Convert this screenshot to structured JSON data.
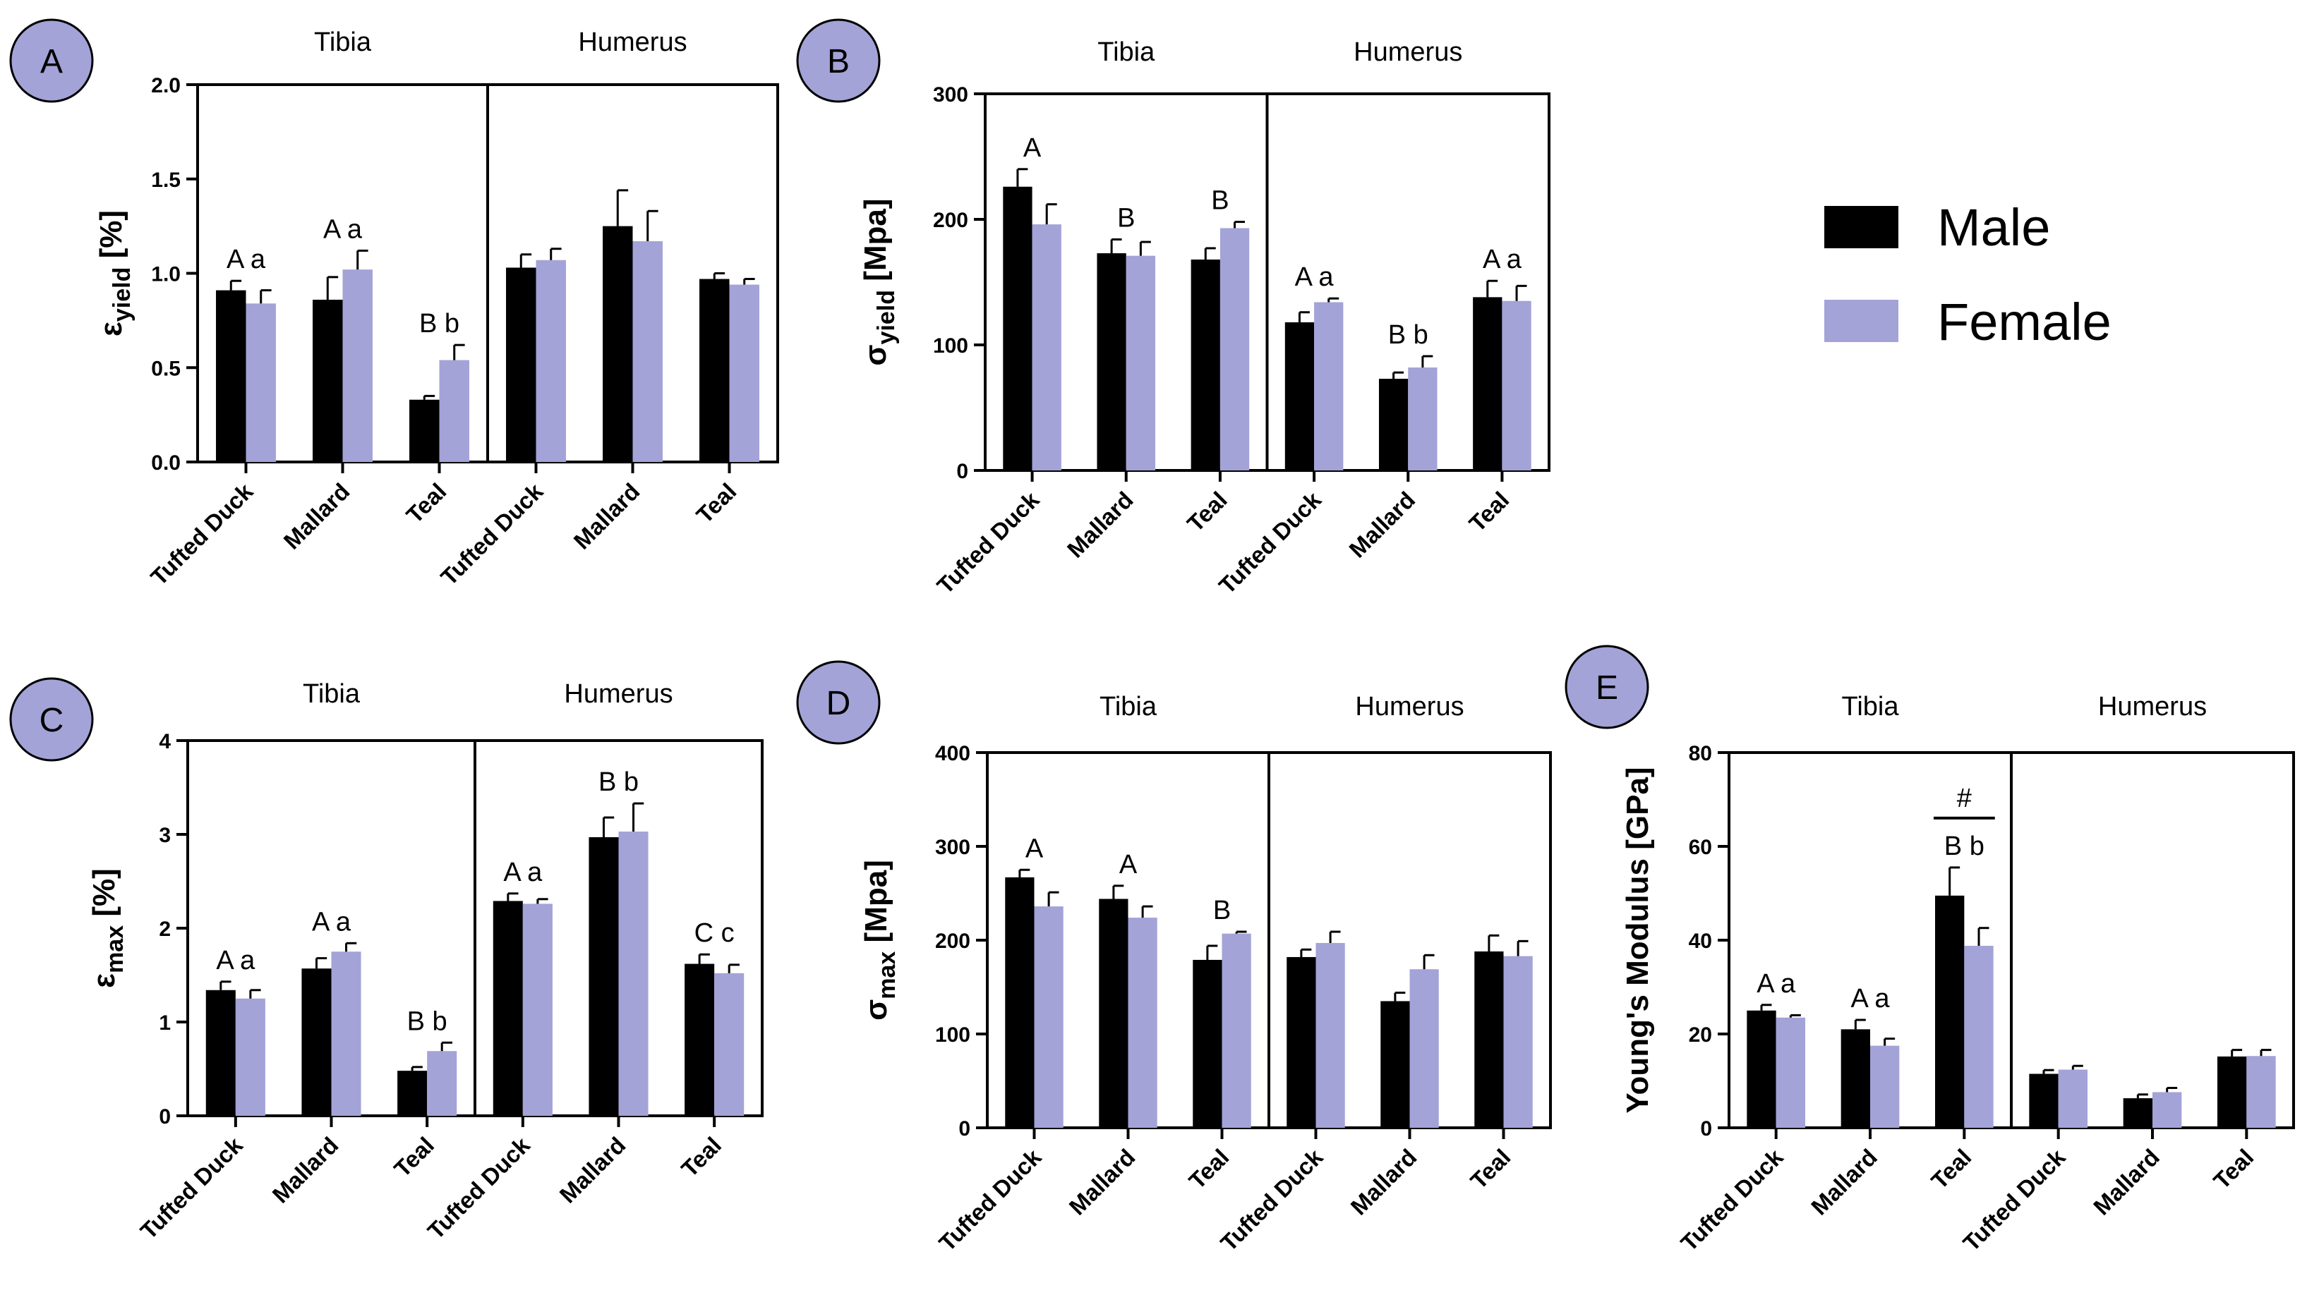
{
  "colors": {
    "male": "#000000",
    "female": "#a3a3d8",
    "panel_badge": "#a3a3d8"
  },
  "legend": {
    "male": "Male",
    "female": "Female"
  },
  "chart_data": [
    {
      "panel": "A",
      "type": "bar",
      "groups": [
        "Tibia",
        "Humerus"
      ],
      "categories": [
        "Tufted Duck",
        "Mallard",
        "Teal",
        "Tufted Duck",
        "Mallard",
        "Teal"
      ],
      "ylabel_main": "ε",
      "ylabel_sub": "yield",
      "ylabel_unit": " [%]",
      "ylim": [
        0,
        2.0
      ],
      "yticks": [
        "0.0",
        "0.5",
        "1.0",
        "1.5",
        "2.0"
      ],
      "series": [
        {
          "name": "Male",
          "values": [
            0.91,
            0.86,
            0.33,
            1.03,
            1.25,
            0.97
          ],
          "errors": [
            0.05,
            0.12,
            0.02,
            0.07,
            0.19,
            0.03
          ]
        },
        {
          "name": "Female",
          "values": [
            0.84,
            1.02,
            0.54,
            1.07,
            1.17,
            0.94
          ],
          "errors": [
            0.07,
            0.1,
            0.08,
            0.06,
            0.16,
            0.03
          ]
        }
      ],
      "annotations": [
        "A a",
        "A a",
        "B b",
        "",
        "",
        ""
      ]
    },
    {
      "panel": "B",
      "type": "bar",
      "groups": [
        "Tibia",
        "Humerus"
      ],
      "categories": [
        "Tufted Duck",
        "Mallard",
        "Teal",
        "Tufted Duck",
        "Mallard",
        "Teal"
      ],
      "ylabel_main": "σ",
      "ylabel_sub": "yield",
      "ylabel_unit": " [Mpa]",
      "ylim": [
        0,
        300
      ],
      "yticks": [
        "0",
        "100",
        "200",
        "300"
      ],
      "series": [
        {
          "name": "Male",
          "values": [
            226,
            173,
            168,
            118,
            73,
            138
          ],
          "errors": [
            14,
            11,
            9,
            8,
            5,
            13
          ]
        },
        {
          "name": "Female",
          "values": [
            196,
            171,
            193,
            134,
            82,
            135
          ],
          "errors": [
            16,
            11,
            5,
            3,
            9,
            12
          ]
        }
      ],
      "annotations": [
        "A",
        "B",
        "B",
        "A a",
        "B b",
        "A a"
      ]
    },
    {
      "panel": "C",
      "type": "bar",
      "groups": [
        "Tibia",
        "Humerus"
      ],
      "categories": [
        "Tufted Duck",
        "Mallard",
        "Teal",
        "Tufted Duck",
        "Mallard",
        "Teal"
      ],
      "ylabel_main": "ε",
      "ylabel_sub": "max",
      "ylabel_unit": " [%]",
      "ylim": [
        0,
        4
      ],
      "yticks": [
        "0",
        "1",
        "2",
        "3",
        "4"
      ],
      "series": [
        {
          "name": "Male",
          "values": [
            1.34,
            1.57,
            0.48,
            2.29,
            2.97,
            1.62
          ],
          "errors": [
            0.09,
            0.11,
            0.04,
            0.08,
            0.21,
            0.1
          ]
        },
        {
          "name": "Female",
          "values": [
            1.25,
            1.75,
            0.69,
            2.26,
            3.03,
            1.52
          ],
          "errors": [
            0.09,
            0.09,
            0.09,
            0.05,
            0.3,
            0.09
          ]
        }
      ],
      "annotations": [
        "A a",
        "A a",
        "B b",
        "A a",
        "B b",
        "C c"
      ]
    },
    {
      "panel": "D",
      "type": "bar",
      "groups": [
        "Tibia",
        "Humerus"
      ],
      "categories": [
        "Tufted Duck",
        "Mallard",
        "Teal",
        "Tufted Duck",
        "Mallard",
        "Teal"
      ],
      "ylabel_main": "σ",
      "ylabel_sub": "max",
      "ylabel_unit": " [Mpa]",
      "ylim": [
        0,
        400
      ],
      "yticks": [
        "0",
        "100",
        "200",
        "300",
        "400"
      ],
      "series": [
        {
          "name": "Male",
          "values": [
            267,
            244,
            179,
            182,
            135,
            188
          ],
          "errors": [
            8,
            14,
            15,
            8,
            9,
            17
          ]
        },
        {
          "name": "Female",
          "values": [
            236,
            224,
            207,
            197,
            169,
            183
          ],
          "errors": [
            15,
            12,
            2,
            12,
            15,
            16
          ]
        }
      ],
      "annotations": [
        "A",
        "A",
        "B",
        "",
        "",
        ""
      ]
    },
    {
      "panel": "E",
      "type": "bar",
      "groups": [
        "Tibia",
        "Humerus"
      ],
      "categories": [
        "Tufted Duck",
        "Mallard",
        "Teal",
        "Tufted Duck",
        "Mallard",
        "Teal"
      ],
      "ylabel_main": "Young's Modulus [GPa]",
      "ylabel_sub": "",
      "ylabel_unit": "",
      "ylim": [
        0,
        80
      ],
      "yticks": [
        "0",
        "20",
        "40",
        "60",
        "80"
      ],
      "series": [
        {
          "name": "Male",
          "values": [
            25,
            21,
            49.5,
            11.5,
            6.3,
            15.2
          ],
          "errors": [
            1.2,
            2,
            6,
            0.8,
            0.8,
            1.4
          ]
        },
        {
          "name": "Female",
          "values": [
            23.5,
            17.5,
            38.8,
            12.4,
            7.6,
            15.3
          ],
          "errors": [
            0.5,
            1.5,
            3.8,
            0.8,
            0.9,
            1.3
          ]
        }
      ],
      "annotations": [
        "A a",
        "A a",
        "B b",
        "",
        "",
        ""
      ],
      "significance": {
        "category_index": 2,
        "label": "#"
      }
    }
  ]
}
